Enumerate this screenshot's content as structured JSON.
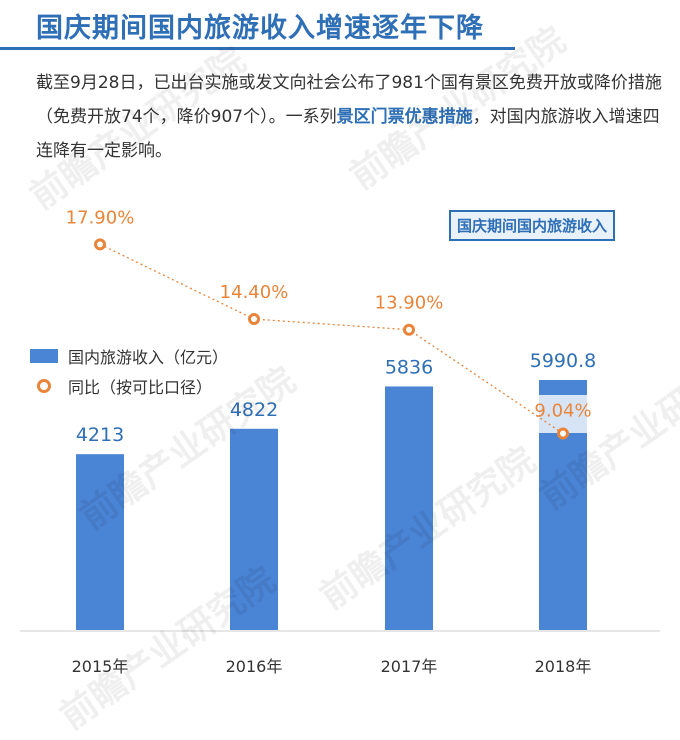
{
  "headline": "国庆期间国内旅游收入增速逐年下降",
  "intro": {
    "part1": "截至9月28日，已出台实施或发文向社会公布了981个国有景区免费开放或降价措施（免费开放74个，降价907个）。一系列",
    "highlight": "景区门票优惠措施",
    "part2": "，对国内旅游收入增速四连降有一定影响。"
  },
  "chart_tag": "国庆期间国内旅游收入",
  "watermark": "前瞻产业研究院",
  "colors": {
    "accent": "#2f6fb6",
    "bar": "#4a84d4",
    "line": "#e8853a"
  },
  "chart_data": {
    "type": "bar",
    "categories": [
      "2015年",
      "2016年",
      "2017年",
      "2018年"
    ],
    "series": [
      {
        "name": "国内旅游收入（亿元）",
        "type": "bar",
        "values": [
          4213,
          4822,
          5836,
          5990.8
        ],
        "labels": [
          "4213",
          "4822",
          "5836",
          "5990.8"
        ]
      },
      {
        "name": "同比（按可比口径）",
        "type": "line",
        "values": [
          17.9,
          14.4,
          13.9,
          9.04
        ],
        "labels": [
          "17.90%",
          "14.40%",
          "13.90%",
          "9.04%"
        ]
      }
    ],
    "legend": "left",
    "grid": false
  }
}
